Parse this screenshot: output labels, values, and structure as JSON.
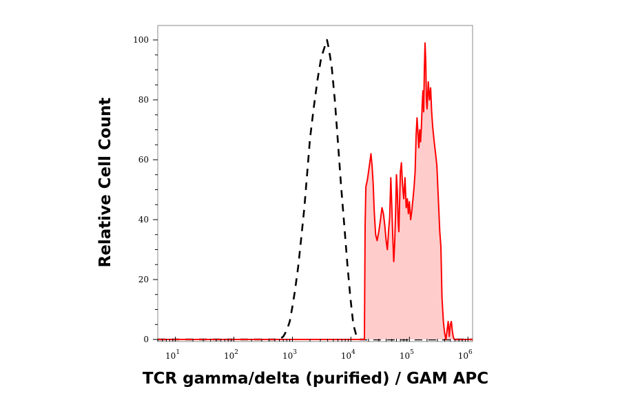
{
  "chart_data": {
    "type": "area",
    "title": "",
    "xlabel": "TCR gamma/delta (purified) / GAM APC",
    "ylabel": "Relative Cell Count",
    "x_scale": "log",
    "xlim": [
      5,
      1200000
    ],
    "ylim": [
      0,
      100
    ],
    "x_ticks": [
      {
        "base": "10",
        "exp": "1",
        "value": 10
      },
      {
        "base": "10",
        "exp": "2",
        "value": 100
      },
      {
        "base": "10",
        "exp": "3",
        "value": 1000
      },
      {
        "base": "10",
        "exp": "4",
        "value": 10000
      },
      {
        "base": "10",
        "exp": "5",
        "value": 100000
      },
      {
        "base": "10",
        "exp": "6",
        "value": 1000000
      }
    ],
    "y_ticks": [
      "0",
      "20",
      "40",
      "60",
      "80",
      "100"
    ],
    "grid": false,
    "series": [
      {
        "style": "dashed",
        "color": "#000000",
        "fill": "none",
        "points": [
          [
            5,
            0
          ],
          [
            100,
            0
          ],
          [
            600,
            0
          ],
          [
            700,
            1
          ],
          [
            800,
            3
          ],
          [
            900,
            6
          ],
          [
            1000,
            11
          ],
          [
            1100,
            16
          ],
          [
            1250,
            24
          ],
          [
            1400,
            33
          ],
          [
            1600,
            44
          ],
          [
            1800,
            56
          ],
          [
            2000,
            67
          ],
          [
            2300,
            77
          ],
          [
            2700,
            87
          ],
          [
            3100,
            94
          ],
          [
            3600,
            98
          ],
          [
            3900,
            100
          ],
          [
            4200,
            97
          ],
          [
            4700,
            91
          ],
          [
            5300,
            80
          ],
          [
            6000,
            66
          ],
          [
            6800,
            51
          ],
          [
            7700,
            38
          ],
          [
            8700,
            25
          ],
          [
            9800,
            14
          ],
          [
            11000,
            5
          ],
          [
            12500,
            1
          ],
          [
            14000,
            0
          ],
          [
            1200000,
            0
          ]
        ]
      },
      {
        "style": "solid",
        "color": "#ff0000",
        "fill": "#ffcccc",
        "points": [
          [
            5,
            0
          ],
          [
            17000,
            0
          ],
          [
            17500,
            38
          ],
          [
            18000,
            51
          ],
          [
            19000,
            53
          ],
          [
            20000,
            56
          ],
          [
            21000,
            59
          ],
          [
            22000,
            62
          ],
          [
            23000,
            58
          ],
          [
            24000,
            52
          ],
          [
            25000,
            43
          ],
          [
            26500,
            35
          ],
          [
            28000,
            33
          ],
          [
            30000,
            36
          ],
          [
            32000,
            40
          ],
          [
            34000,
            44
          ],
          [
            36000,
            42
          ],
          [
            38000,
            38
          ],
          [
            40000,
            33
          ],
          [
            42000,
            30
          ],
          [
            44000,
            36
          ],
          [
            46000,
            41
          ],
          [
            48000,
            54
          ],
          [
            50000,
            44
          ],
          [
            52000,
            34
          ],
          [
            54000,
            26
          ],
          [
            56000,
            32
          ],
          [
            58000,
            42
          ],
          [
            60000,
            55
          ],
          [
            62000,
            50
          ],
          [
            64000,
            40
          ],
          [
            66000,
            36
          ],
          [
            68000,
            46
          ],
          [
            70000,
            56
          ],
          [
            73000,
            59
          ],
          [
            76000,
            52
          ],
          [
            80000,
            47
          ],
          [
            84000,
            54
          ],
          [
            88000,
            44
          ],
          [
            92000,
            47
          ],
          [
            96000,
            42
          ],
          [
            100000,
            46
          ],
          [
            105000,
            40
          ],
          [
            110000,
            43
          ],
          [
            115000,
            47
          ],
          [
            120000,
            51
          ],
          [
            125000,
            56
          ],
          [
            130000,
            68
          ],
          [
            135000,
            74
          ],
          [
            140000,
            69
          ],
          [
            145000,
            64
          ],
          [
            150000,
            70
          ],
          [
            155000,
            66
          ],
          [
            160000,
            71
          ],
          [
            165000,
            78
          ],
          [
            170000,
            83
          ],
          [
            175000,
            76
          ],
          [
            180000,
            90
          ],
          [
            185000,
            99
          ],
          [
            190000,
            93
          ],
          [
            195000,
            80
          ],
          [
            200000,
            77
          ],
          [
            210000,
            86
          ],
          [
            220000,
            80
          ],
          [
            230000,
            84
          ],
          [
            240000,
            76
          ],
          [
            250000,
            71
          ],
          [
            265000,
            66
          ],
          [
            280000,
            62
          ],
          [
            295000,
            58
          ],
          [
            310000,
            48
          ],
          [
            330000,
            36
          ],
          [
            345000,
            31
          ],
          [
            360000,
            14
          ],
          [
            380000,
            6
          ],
          [
            400000,
            2
          ],
          [
            420000,
            0
          ],
          [
            440000,
            3
          ],
          [
            460000,
            6
          ],
          [
            480000,
            1
          ],
          [
            500000,
            5
          ],
          [
            520000,
            6
          ],
          [
            540000,
            3
          ],
          [
            560000,
            1
          ],
          [
            580000,
            0
          ],
          [
            1200000,
            0
          ]
        ]
      }
    ]
  }
}
